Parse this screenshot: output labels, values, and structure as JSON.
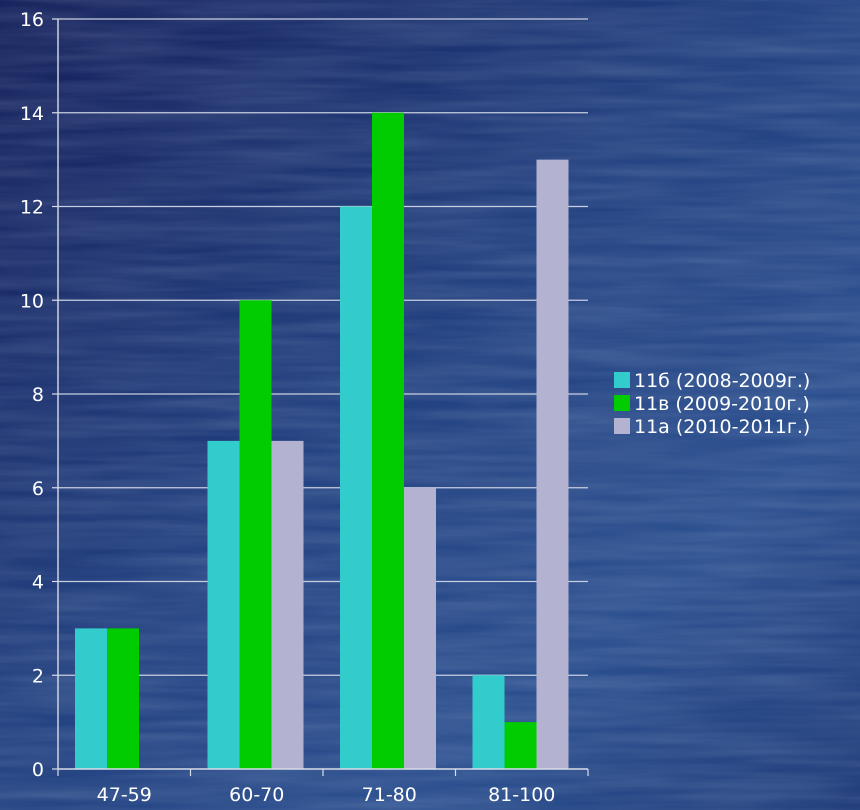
{
  "chart_data": {
    "type": "bar",
    "categories": [
      "47-59",
      "60-70",
      "71-80",
      "81-100"
    ],
    "series": [
      {
        "name": "11б (2008-2009г.)",
        "values": [
          3,
          7,
          12,
          2
        ]
      },
      {
        "name": "11в (2009-2010г.)",
        "values": [
          3,
          10,
          14,
          1
        ]
      },
      {
        "name": "11а (2010-2011г.)",
        "values": [
          0,
          7,
          6,
          13
        ]
      }
    ],
    "ylim": [
      0,
      16
    ],
    "yticks": [
      0,
      2,
      4,
      6,
      8,
      10,
      12,
      14,
      16
    ],
    "grid": true,
    "legend": "right",
    "colors": [
      "#33cccc",
      "#00cc00",
      "#b3b3d1"
    ],
    "background": "#1d3a78"
  }
}
